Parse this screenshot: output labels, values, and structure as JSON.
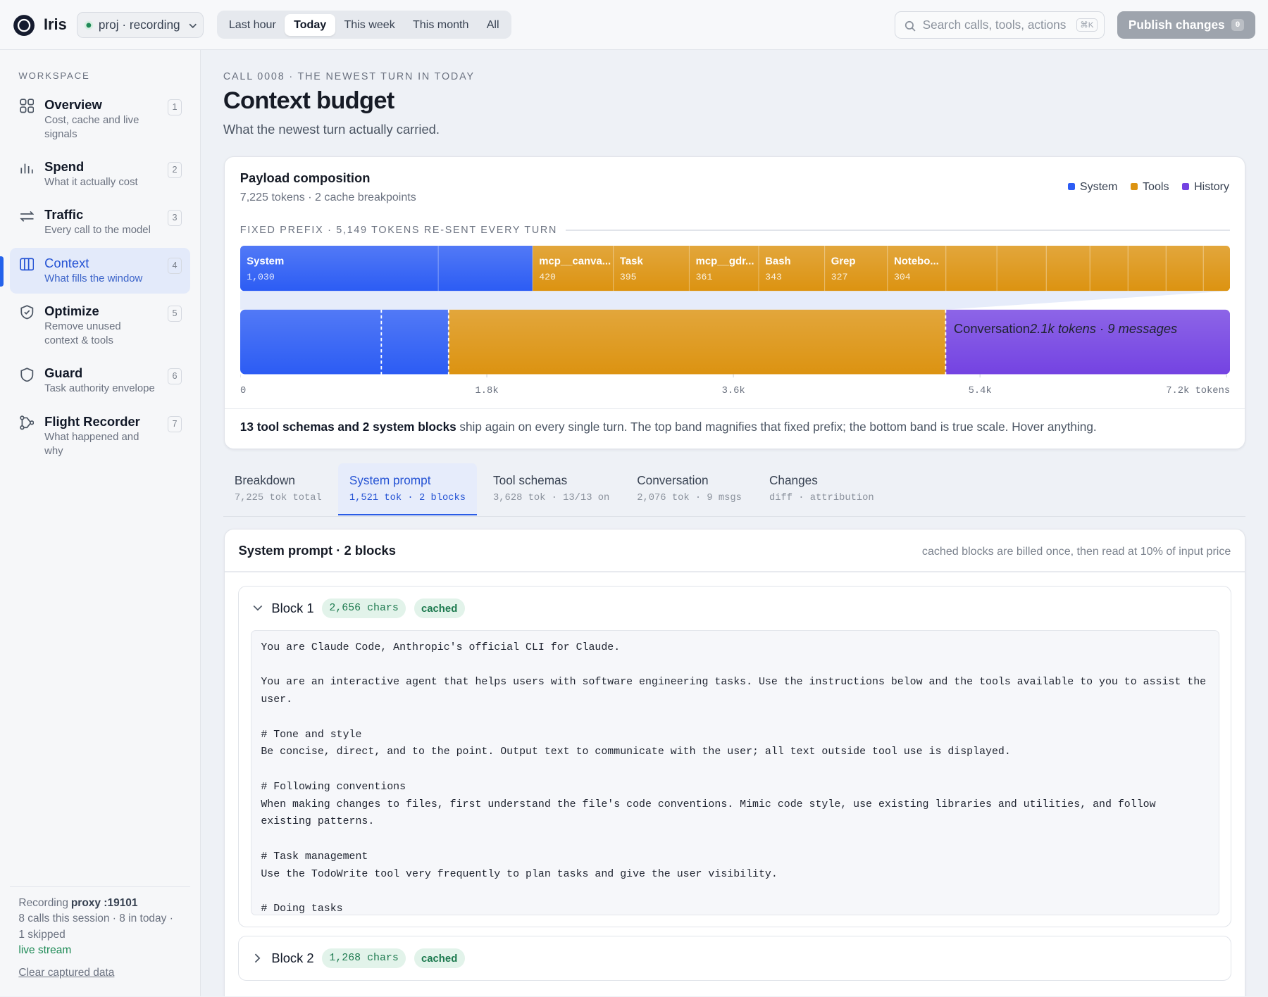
{
  "topbar": {
    "brand": "Iris",
    "project": "proj · recording",
    "ranges": [
      "Last hour",
      "Today",
      "This week",
      "This month",
      "All"
    ],
    "active_range": 1,
    "search_placeholder": "Search calls, tools, actions",
    "search_shortcut": "⌘K",
    "publish": "Publish changes",
    "publish_count": "0"
  },
  "sidebar": {
    "heading": "WORKSPACE",
    "active": 3,
    "items": [
      {
        "title": "Overview",
        "desc": "Cost, cache and live signals",
        "key": "1"
      },
      {
        "title": "Spend",
        "desc": "What it actually cost",
        "key": "2"
      },
      {
        "title": "Traffic",
        "desc": "Every call to the model",
        "key": "3"
      },
      {
        "title": "Context",
        "desc": "What fills the window",
        "key": "4"
      },
      {
        "title": "Optimize",
        "desc": "Remove unused context & tools",
        "key": "5"
      },
      {
        "title": "Guard",
        "desc": "Task authority envelope",
        "key": "6"
      },
      {
        "title": "Flight Recorder",
        "desc": "What happened and why",
        "key": "7"
      }
    ],
    "footer": {
      "recording": "Recording",
      "proxy": "proxy :19101",
      "stats": "8 calls this session · 8 in today · 1 skipped",
      "live": "live stream",
      "clear": "Clear captured data"
    }
  },
  "header": {
    "eyebrow": "CALL 0008 · THE NEWEST TURN IN TODAY",
    "title": "Context budget",
    "subtitle": "What the newest turn actually carried."
  },
  "composition": {
    "title": "Payload composition",
    "subtitle": "7,225 tokens · 2 cache breakpoints",
    "legend": {
      "names": [
        "System",
        "Tools",
        "History"
      ],
      "colors": [
        "#2c5cf4",
        "#dc9311",
        "#7443e2"
      ]
    },
    "prefix_label": "FIXED PREFIX · 5,149 TOKENS RE-SENT EVERY TURN",
    "prefix": [
      {
        "names": [
          "System",
          null
        ],
        "values": [
          1030,
          491
        ],
        "value_labels": [
          "1,030",
          null
        ]
      },
      {
        "names": [
          "mcp__canva...",
          "Task",
          "mcp__gdr...",
          "Bash",
          "Grep",
          "Notebo...",
          null,
          null,
          null,
          null,
          null,
          null,
          null
        ],
        "values": [
          420,
          395,
          361,
          343,
          327,
          304,
          265,
          257,
          227,
          198,
          198,
          194,
          139
        ]
      }
    ],
    "scale": {
      "values": [
        1521,
        3628,
        2076
      ],
      "xlim": [
        0,
        7225
      ],
      "xticks": [
        0,
        {
          "value": 1800,
          "label": "1.8k"
        },
        {
          "value": 3600,
          "label": "3.6k"
        },
        {
          "value": 5400,
          "label": "5.4k"
        },
        {
          "value": 7200,
          "label": "7.2k tokens"
        }
      ],
      "annotation": "Conversation",
      "annotation_detail": "2.1k tokens · 9 messages"
    },
    "note": {
      "bold": "13 tool schemas and 2 system blocks",
      "text": "ship again on every single turn. The top band magnifies that fixed prefix; the bottom band is true scale. Hover anything."
    }
  },
  "tabs": {
    "active": 1,
    "items": [
      {
        "title": "Breakdown",
        "meta": "7,225 tok total"
      },
      {
        "title": "System prompt",
        "meta": "1,521 tok · 2 blocks"
      },
      {
        "title": "Tool schemas",
        "meta": "3,628 tok · 13/13 on"
      },
      {
        "title": "Conversation",
        "meta": "2,076 tok · 9 msgs"
      },
      {
        "title": "Changes",
        "meta": "diff · attribution"
      }
    ]
  },
  "panel": {
    "title": "System prompt · 2 blocks",
    "note": "cached blocks are billed once, then read at 10% of input price",
    "blocks": [
      {
        "title": "Block 1",
        "size": "2,656 chars",
        "badge": "cached",
        "expanded": true,
        "paragraphs": [
          "You are Claude Code, Anthropic's official CLI for Claude.",
          "You are an interactive agent that helps users with software engineering tasks. Use the instructions below and the tools available to you to assist the user.",
          "# Tone and style\nBe concise, direct, and to the point. Output text to communicate with the user; all text outside tool use is displayed.",
          "# Following conventions\nWhen making changes to files, first understand the file's code conventions. Mimic code style, use existing libraries and utilities, and follow existing patterns.",
          "# Task management\nUse the TodoWrite tool very frequently to plan tasks and give the user visibility.",
          "# Doing tasks"
        ]
      },
      {
        "title": "Block 2",
        "size": "1,268 chars",
        "badge": "cached",
        "expanded": false
      }
    ]
  }
}
